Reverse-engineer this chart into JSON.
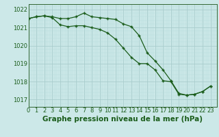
{
  "x": [
    0,
    1,
    2,
    3,
    4,
    5,
    6,
    7,
    8,
    9,
    10,
    11,
    12,
    13,
    14,
    15,
    16,
    17,
    18,
    19,
    20,
    21,
    22,
    23
  ],
  "line1": [
    1021.5,
    1021.6,
    1021.65,
    1021.6,
    1021.5,
    1021.5,
    1021.6,
    1021.8,
    1021.6,
    1021.55,
    1021.5,
    1021.45,
    1021.2,
    1021.05,
    1020.55,
    1019.6,
    1019.15,
    1018.65,
    1018.05,
    1017.35,
    1017.25,
    1017.3,
    1017.45,
    1017.75
  ],
  "line2": [
    1021.5,
    1021.6,
    1021.65,
    1021.55,
    1021.15,
    1021.05,
    1021.1,
    1021.1,
    1021.0,
    1020.9,
    1020.7,
    1020.35,
    1019.85,
    1019.35,
    1019.0,
    1019.0,
    1018.65,
    1018.05,
    1018.0,
    1017.3,
    1017.25,
    1017.3,
    1017.45,
    1017.75
  ],
  "xlim": [
    0,
    23
  ],
  "ylim": [
    1016.6,
    1022.3
  ],
  "yticks": [
    1017,
    1018,
    1019,
    1020,
    1021,
    1022
  ],
  "xticks": [
    0,
    1,
    2,
    3,
    4,
    5,
    6,
    7,
    8,
    9,
    10,
    11,
    12,
    13,
    14,
    15,
    16,
    17,
    18,
    19,
    20,
    21,
    22,
    23
  ],
  "xlabel": "Graphe pression niveau de la mer (hPa)",
  "line_color": "#1a5c1a",
  "marker": "+",
  "bg_color": "#cce8e8",
  "grid_major_color": "#a8cccc",
  "grid_minor_color": "#b8dddd",
  "axis_color": "#336633",
  "label_color": "#1a5c1a",
  "xlabel_fontsize": 7.5,
  "tick_fontsize": 6.0
}
